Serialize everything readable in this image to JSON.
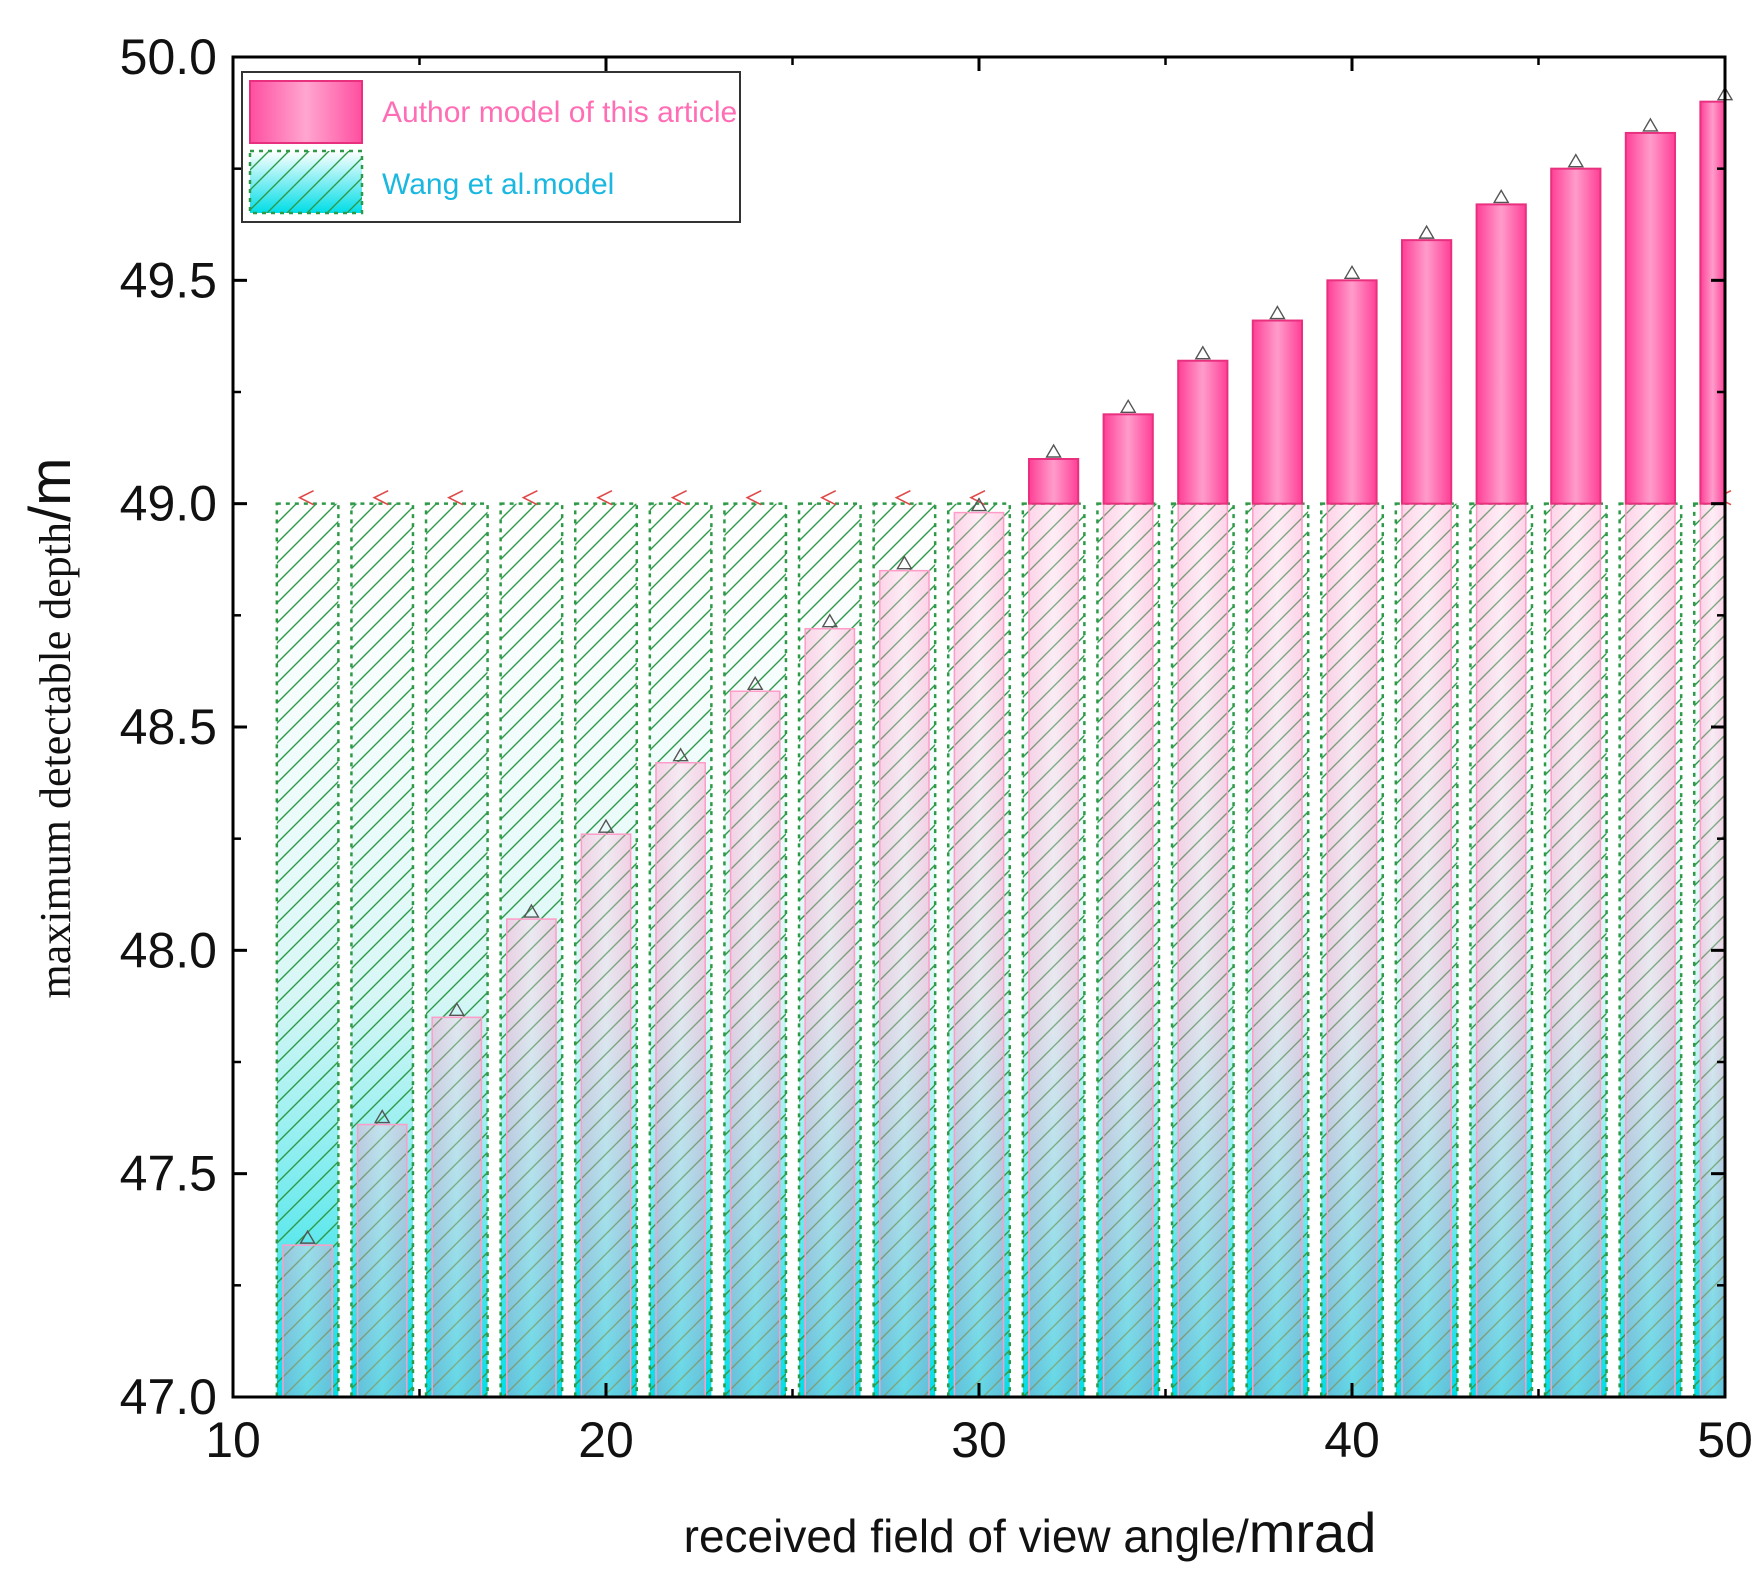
{
  "chart_data": {
    "type": "bar",
    "x": [
      12,
      14,
      16,
      18,
      20,
      22,
      24,
      26,
      28,
      30,
      32,
      34,
      36,
      38,
      40,
      42,
      44,
      46,
      48,
      50
    ],
    "series": [
      {
        "name": "Author model of this article",
        "values": [
          47.34,
          47.61,
          47.85,
          48.07,
          48.26,
          48.42,
          48.58,
          48.72,
          48.85,
          48.98,
          49.1,
          49.2,
          49.32,
          49.41,
          49.5,
          49.59,
          49.67,
          49.75,
          49.83,
          49.9
        ],
        "color": "#ff4fa0"
      },
      {
        "name": "Wang  et al.model",
        "values": [
          49.0,
          49.0,
          49.0,
          49.0,
          49.0,
          49.0,
          49.0,
          49.0,
          49.0,
          49.0,
          49.0,
          49.0,
          49.0,
          49.0,
          49.0,
          49.0,
          49.0,
          49.0,
          49.0,
          49.0
        ],
        "color": "#11c9e0"
      }
    ],
    "xlabel_main": "received field of view angle/",
    "xlabel_unit": "mrad",
    "ylabel_main": "maximum detectable depth",
    "ylabel_unit": "/m",
    "xlim": [
      10,
      50
    ],
    "ylim": [
      47.0,
      50.0
    ],
    "xticks": [
      10,
      20,
      30,
      40,
      50
    ],
    "xtick_labels": [
      "10",
      "20",
      "30",
      "40",
      "50"
    ],
    "yticks": [
      47.0,
      47.5,
      48.0,
      48.5,
      49.0,
      49.5,
      50.0
    ],
    "ytick_labels": [
      "47.0",
      "47.5",
      "48.0",
      "48.5",
      "49.0",
      "49.5",
      "50.0"
    ],
    "legend_position": "top-left",
    "grid": false
  },
  "colors": {
    "author_fill": "#ff5aa8",
    "author_light": "#ffc3dd",
    "author_legend_text": "#ff6eb4",
    "wang_fill": "#00e0e8",
    "wang_hatch": "#2e9a48",
    "wang_legend_text": "#1ab8e0"
  }
}
